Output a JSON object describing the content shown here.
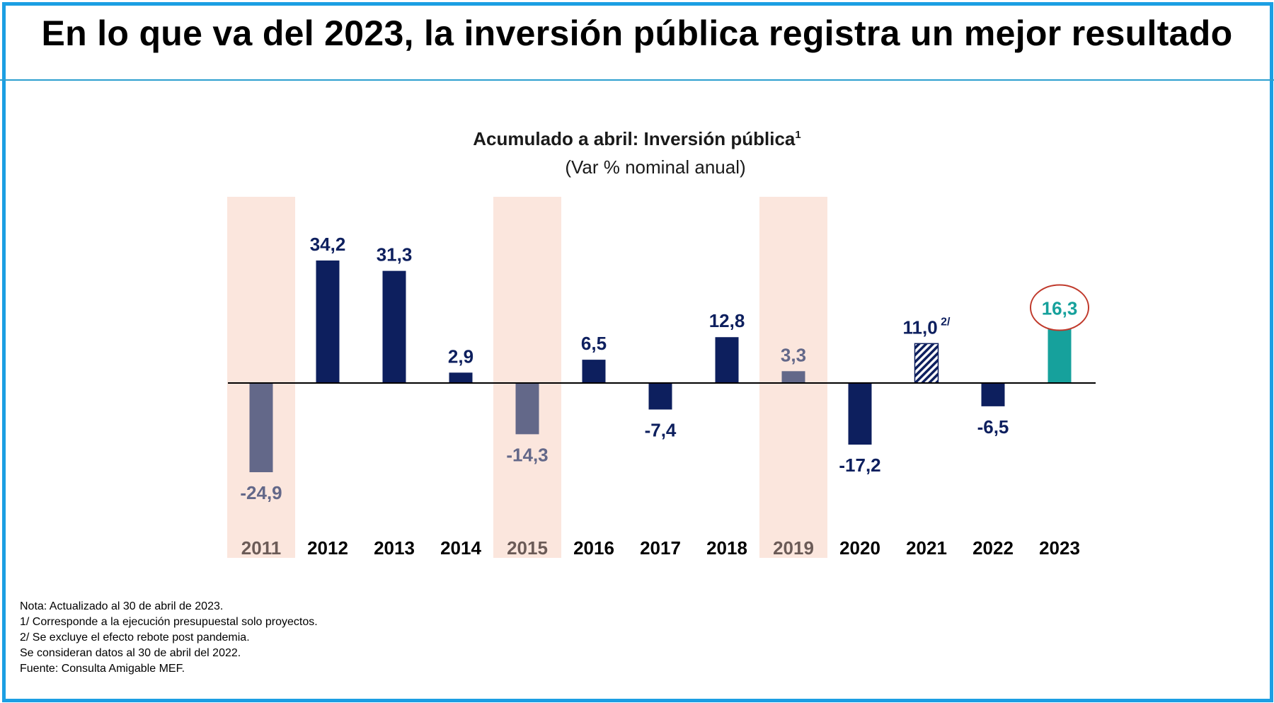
{
  "page": {
    "title": "En lo que va del 2023, la inversión pública registra un mejor resultado"
  },
  "chart_data": {
    "type": "bar",
    "title": "Acumulado a abril: Inversión pública",
    "title_superscript": "1",
    "subtitle": "(Var % nominal anual)",
    "xlabel": "",
    "ylabel": "",
    "ylim": [
      -30,
      40
    ],
    "categories": [
      "2011",
      "2012",
      "2013",
      "2014",
      "2015",
      "2016",
      "2017",
      "2018",
      "2019",
      "2020",
      "2021",
      "2022",
      "2023"
    ],
    "values": [
      -24.9,
      34.2,
      31.3,
      2.9,
      -14.3,
      6.5,
      -7.4,
      12.8,
      3.3,
      -17.2,
      11.0,
      -6.5,
      16.3
    ],
    "value_labels": [
      "-24,9",
      "34,2",
      "31,3",
      "2,9",
      "-14,3",
      "6,5",
      "-7,4",
      "12,8",
      "3,3",
      "-17,2",
      "11,0",
      "-6,5",
      "16,3"
    ],
    "annotations": [
      {
        "category": "2021",
        "text": "2/",
        "style": "hatched"
      },
      {
        "category": "2023",
        "text": "16,3",
        "style": "circled-highlight"
      }
    ],
    "highlighted_years": [
      "2011",
      "2015",
      "2019"
    ],
    "colors": {
      "default": "#0d1f5e",
      "highlighted_year": "#636889",
      "current_year": "#16a19c",
      "highlight_band": "#fbe6dd",
      "highlight_label": "#6b5b57",
      "circle": "#c0392b"
    }
  },
  "notes": [
    "Nota: Actualizado al 30 de abril de 2023.",
    "1/ Corresponde a la ejecución presupuestal solo proyectos.",
    "2/ Se excluye el efecto rebote post pandemia.",
    "Se consideran datos al 30 de abril del 2022.",
    "Fuente: Consulta Amigable MEF."
  ]
}
